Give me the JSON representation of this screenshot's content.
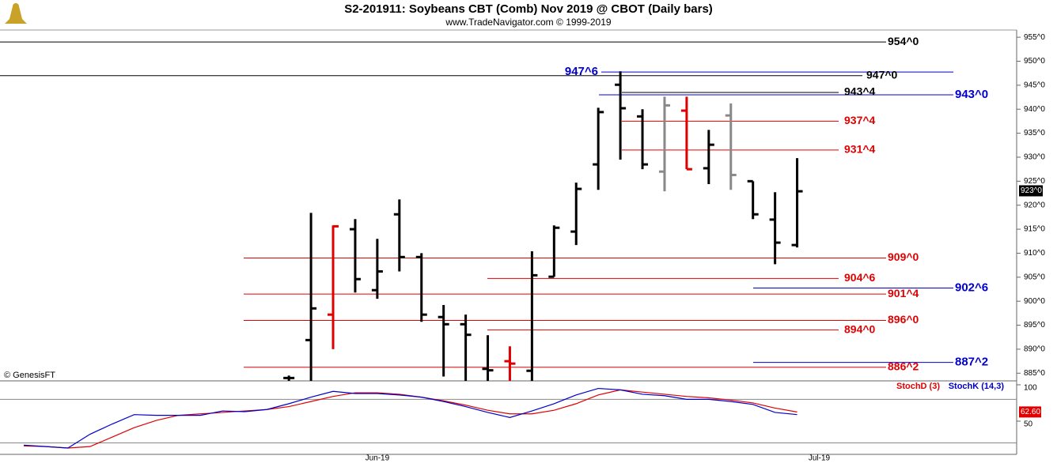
{
  "chart_data": [
    {
      "type": "ohlc",
      "title": "S2-201911:  Soybeans CBT (Comb) Nov 2019 @ CBOT  (Daily bars)",
      "subtitle": "www.TradeNavigator.com © 1999-2019",
      "note": "© GenesisFT",
      "categories": [
        null,
        null,
        null,
        null,
        null,
        null,
        null,
        null,
        null,
        null,
        null,
        null,
        null,
        null,
        null,
        null,
        "Jun-19",
        null,
        null,
        null,
        null,
        null,
        null,
        null,
        null,
        null,
        null,
        null,
        null,
        null,
        null,
        null,
        null,
        null,
        null,
        null,
        "Jul-19"
      ],
      "open": [
        null,
        null,
        null,
        null,
        null,
        null,
        null,
        null,
        null,
        null,
        null,
        null,
        884,
        891.9,
        897.2,
        915,
        902.3,
        918.1,
        909.2,
        896.7,
        895.2,
        885.9,
        887.5,
        885.5,
        905.1,
        914.5,
        928.5,
        945.1,
        938.5,
        927,
        939.7,
        927.7,
        938.7,
        925,
        917,
        911.7,
        null
      ],
      "high": [
        null,
        null,
        null,
        null,
        null,
        null,
        null,
        null,
        null,
        null,
        null,
        null,
        884.5,
        918.4,
        915.8,
        917.1,
        913,
        921.2,
        910,
        899.2,
        897.2,
        892.9,
        890.6,
        910.4,
        915.8,
        924.7,
        940.3,
        947.9,
        940,
        942.6,
        942.6,
        935.7,
        941.2,
        925,
        922.7,
        929.8,
        null
      ],
      "low": [
        null,
        null,
        null,
        null,
        null,
        null,
        null,
        null,
        null,
        null,
        null,
        null,
        880,
        878,
        890,
        901.8,
        900.5,
        906.2,
        895.7,
        884.3,
        880,
        880,
        880,
        880,
        905.1,
        911.7,
        923.2,
        929.5,
        927.5,
        922.9,
        927.5,
        924.4,
        923.2,
        917.1,
        907.7,
        911.2,
        null
      ],
      "close": [
        null,
        null,
        null,
        null,
        null,
        null,
        null,
        null,
        null,
        null,
        null,
        null,
        884,
        898.5,
        915.6,
        904.6,
        906.2,
        909.2,
        897.2,
        895.2,
        893,
        885.6,
        887,
        905.4,
        915.3,
        923.4,
        939.4,
        940.2,
        928.5,
        940.8,
        927.5,
        932.6,
        926.3,
        918.1,
        912.2,
        922.9,
        null
      ],
      "bar_colors": [
        null,
        null,
        null,
        null,
        null,
        null,
        null,
        null,
        null,
        null,
        null,
        null,
        "#000000",
        "#000000",
        "#e00000",
        "#000000",
        "#000000",
        "#000000",
        "#000000",
        "#000000",
        "#000000",
        "#000000",
        "#e00000",
        "#000000",
        "#000000",
        "#000000",
        "#000000",
        "#000000",
        "#000000",
        "#888888",
        "#e00000",
        "#000000",
        "#888888",
        "#000000",
        "#000000",
        "#000000",
        null
      ],
      "ylim": [
        883.4,
        956.5
      ],
      "yticks": [
        {
          "value": 885,
          "label": "885^0"
        },
        {
          "value": 890,
          "label": "890^0"
        },
        {
          "value": 895,
          "label": "895^0"
        },
        {
          "value": 900,
          "label": "900^0"
        },
        {
          "value": 905,
          "label": "905^0"
        },
        {
          "value": 910,
          "label": "910^0"
        },
        {
          "value": 915,
          "label": "915^0"
        },
        {
          "value": 920,
          "label": "920^0"
        },
        {
          "value": 925,
          "label": "925^0"
        },
        {
          "value": 930,
          "label": "930^0"
        },
        {
          "value": 935,
          "label": "935^0"
        },
        {
          "value": 940,
          "label": "940^0"
        },
        {
          "value": 945,
          "label": "945^0"
        },
        {
          "value": 950,
          "label": "950^0"
        },
        {
          "value": 955,
          "label": "955^0"
        }
      ],
      "levels": [
        {
          "value": 954,
          "label": "954^0",
          "color": "#000000"
        },
        {
          "value": 947,
          "label": "947^0",
          "color": "#000000"
        },
        {
          "value": 947.75,
          "label": "947^6",
          "color": "#0000cc"
        },
        {
          "value": 943.5,
          "label": "943^4",
          "color": "#000000"
        },
        {
          "value": 943,
          "label": "943^0",
          "color": "#0000cc"
        },
        {
          "value": 937.5,
          "label": "937^4",
          "color": "#e00000"
        },
        {
          "value": 931.5,
          "label": "931^4",
          "color": "#e00000"
        },
        {
          "value": 909,
          "label": "909^0",
          "color": "#e00000"
        },
        {
          "value": 904.75,
          "label": "904^6",
          "color": "#e00000"
        },
        {
          "value": 902.75,
          "label": "902^6",
          "color": "#0000cc"
        },
        {
          "value": 901.5,
          "label": "901^4",
          "color": "#e00000"
        },
        {
          "value": 896,
          "label": "896^0",
          "color": "#e00000"
        },
        {
          "value": 894,
          "label": "894^0",
          "color": "#e00000"
        },
        {
          "value": 887.25,
          "label": "887^2",
          "color": "#0000cc"
        },
        {
          "value": 886.25,
          "label": "886^2",
          "color": "#e00000"
        }
      ],
      "last_price": {
        "value": 923,
        "label": "923^0"
      }
    },
    {
      "type": "line",
      "series": [
        {
          "name": "StochD (3)",
          "color": "#e00000",
          "values": [
            16,
            15,
            13,
            15,
            28,
            41,
            51,
            58,
            60,
            62,
            64,
            66,
            70,
            77,
            84,
            89,
            89,
            87,
            83,
            78,
            72,
            65,
            60,
            60,
            65,
            74,
            86,
            93,
            90,
            87,
            84,
            82,
            79,
            75,
            68,
            62.6,
            null
          ]
        },
        {
          "name": "StochK (14,3)",
          "color": "#0000cc",
          "values": [
            17,
            15,
            13,
            32,
            46,
            59,
            58,
            58,
            58,
            64,
            63,
            66,
            74,
            83,
            91,
            88,
            88,
            86,
            83,
            77,
            70,
            62,
            55,
            64,
            74,
            86,
            95,
            93,
            87,
            85,
            80,
            80,
            77,
            73,
            62,
            59,
            null
          ]
        }
      ],
      "ylim": [
        4.3,
        105.4
      ],
      "yticks": [
        50,
        100
      ],
      "reference_lines": [
        20,
        80
      ],
      "last_value": {
        "value": 62.6,
        "label": "62.60"
      }
    }
  ]
}
